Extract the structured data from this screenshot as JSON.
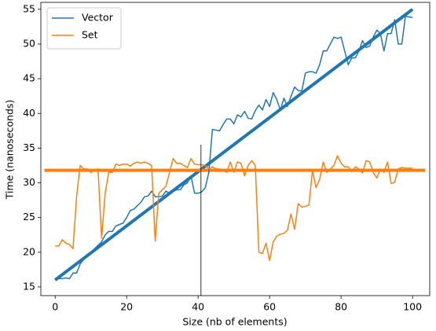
{
  "chart_data": {
    "type": "line",
    "xlabel": "Size (nb of elements)",
    "ylabel": "Time (nanoseconds)",
    "x": [
      0,
      1,
      2,
      3,
      4,
      5,
      6,
      7,
      8,
      9,
      10,
      11,
      12,
      13,
      14,
      15,
      16,
      17,
      18,
      19,
      20,
      21,
      22,
      23,
      24,
      25,
      26,
      27,
      28,
      29,
      30,
      31,
      32,
      33,
      34,
      35,
      36,
      37,
      38,
      39,
      40,
      41,
      42,
      43,
      44,
      45,
      46,
      47,
      48,
      49,
      50,
      51,
      52,
      53,
      54,
      55,
      56,
      57,
      58,
      59,
      60,
      61,
      62,
      63,
      64,
      65,
      66,
      67,
      68,
      69,
      70,
      71,
      72,
      73,
      74,
      75,
      76,
      77,
      78,
      79,
      80,
      81,
      82,
      83,
      84,
      85,
      86,
      87,
      88,
      89,
      90,
      91,
      92,
      93,
      94,
      95,
      96,
      97,
      98,
      99,
      100
    ],
    "series": [
      {
        "name": "Vector",
        "color": "#1f77b4",
        "values": [
          16,
          16.2,
          16.2,
          16.3,
          16.2,
          17,
          17,
          18.3,
          19,
          19.5,
          20,
          20.5,
          21,
          21.5,
          22.5,
          23,
          23,
          23.8,
          24,
          24.2,
          25,
          26,
          26.2,
          26.7,
          27.2,
          28,
          28.1,
          28.8,
          28,
          28,
          28.1,
          28.8,
          28.5,
          28.8,
          29,
          29,
          29.7,
          30,
          31,
          28.5,
          28.5,
          28.7,
          29.3,
          31.5,
          37.7,
          37.6,
          37.5,
          38.4,
          39.2,
          39.2,
          38.5,
          39.8,
          39.5,
          40.3,
          39.3,
          39.2,
          40.4,
          41.2,
          40.5,
          42,
          41,
          43,
          42,
          40.5,
          42.2,
          41,
          42.5,
          43.8,
          43.3,
          43.2,
          45.8,
          46,
          46,
          45.8,
          47,
          49,
          49,
          50,
          51,
          50.8,
          51,
          49,
          47,
          48,
          48,
          49,
          50.5,
          49.5,
          49.7,
          51,
          52,
          51.5,
          49,
          51.5,
          51.5,
          53.5,
          50,
          50,
          54,
          53.9,
          53.8
        ]
      },
      {
        "name": "Set",
        "color": "#ff7f0e",
        "values": [
          20.9,
          20.9,
          21.8,
          21.3,
          21.1,
          20.5,
          28,
          32.5,
          32,
          32,
          31.5,
          31.8,
          32,
          22,
          28.5,
          31.5,
          31.5,
          32.7,
          32.5,
          32.7,
          32.7,
          32.4,
          32.8,
          33,
          32.8,
          33,
          32.8,
          32.5,
          21.6,
          28.5,
          29,
          29.5,
          31.5,
          33.5,
          32.8,
          32.8,
          32.5,
          32.2,
          33.5,
          32.7,
          32.6,
          32.6,
          32.5,
          32,
          32.3,
          32,
          32,
          31.8,
          31.5,
          33,
          31.5,
          33,
          32.8,
          31,
          32.5,
          33.2,
          32.5,
          20,
          19.8,
          21.3,
          18.8,
          21.5,
          22.3,
          22.6,
          22.7,
          23.2,
          25.5,
          23.3,
          27,
          26.5,
          26.6,
          26.8,
          31.8,
          29.3,
          30.5,
          33,
          31.5,
          32,
          32.5,
          33.9,
          32.8,
          32.3,
          32.3,
          31.6,
          32.3,
          32,
          31.4,
          33.2,
          33,
          31.5,
          30.7,
          32,
          31.5,
          33,
          29.9,
          30.1,
          32,
          32.2,
          32.1,
          32.1,
          32.1
        ]
      }
    ],
    "fit_lines": [
      {
        "color": "#1f77b4",
        "x": [
          0,
          100
        ],
        "values": [
          16,
          55
        ]
      },
      {
        "color": "#ff7f0e",
        "x": [
          -3,
          103.5
        ],
        "values": [
          31.8,
          31.8
        ]
      }
    ],
    "vline": {
      "x": 40.8,
      "ymax": 35.5,
      "color": "#000000"
    },
    "xlim": [
      -4,
      104.8
    ],
    "ylim": [
      13.75,
      56
    ],
    "xticks": [
      0,
      20,
      40,
      60,
      80,
      100
    ],
    "yticks": [
      15,
      20,
      25,
      30,
      35,
      40,
      45,
      50,
      55
    ],
    "legend": "upper left"
  }
}
